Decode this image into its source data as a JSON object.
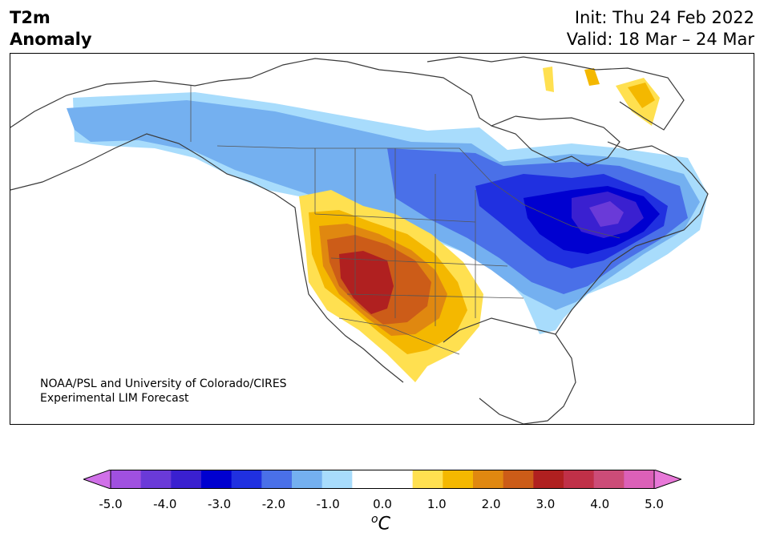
{
  "title": {
    "left_line1": "T2m",
    "left_line2": "Anomaly",
    "init": "Init: Thu 24 Feb 2022",
    "valid": "Valid: 18 Mar – 24 Mar"
  },
  "credit": {
    "line1": "NOAA/PSL and University of Colorado/CIRES",
    "line2": "Experimental LIM Forecast"
  },
  "colorbar": {
    "unit_base": "o",
    "unit_letter": "C",
    "tick_labels": [
      "-5.0",
      "-4.0",
      "-3.0",
      "-2.0",
      "-1.0",
      "0.0",
      "1.0",
      "2.0",
      "3.0",
      "4.0",
      "5.0"
    ],
    "colors": [
      "#d070e8",
      "#a050e0",
      "#6a3ad8",
      "#3a20d0",
      "#0000d0",
      "#2030e0",
      "#4a70e8",
      "#74b0f0",
      "#a8dcfc",
      "#ffffff",
      "#ffffff",
      "#ffe050",
      "#f4b800",
      "#e08810",
      "#cc5c18",
      "#b02020",
      "#c03048",
      "#cc4c78",
      "#dc60b8",
      "#e878d8"
    ]
  }
}
